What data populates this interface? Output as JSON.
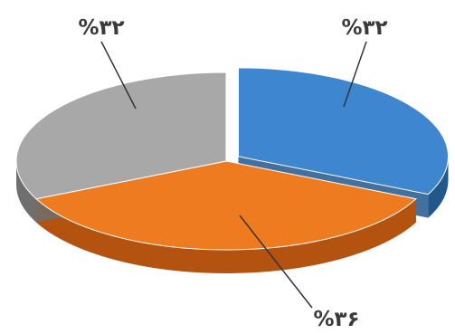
{
  "chart_data": {
    "type": "pie",
    "title": "",
    "slices": [
      {
        "value": 32,
        "label": "%۳۲",
        "color": "#3f86d0",
        "side_color": "#22578c"
      },
      {
        "value": 36,
        "label": "%۳۶",
        "color": "#ee7b1f",
        "side_color": "#b45310"
      },
      {
        "value": 32,
        "label": "%۳۲",
        "color": "#a8a8a8",
        "side_color": "#6f6f6f"
      }
    ],
    "exploded_slice_index": 0,
    "legend": "none"
  }
}
